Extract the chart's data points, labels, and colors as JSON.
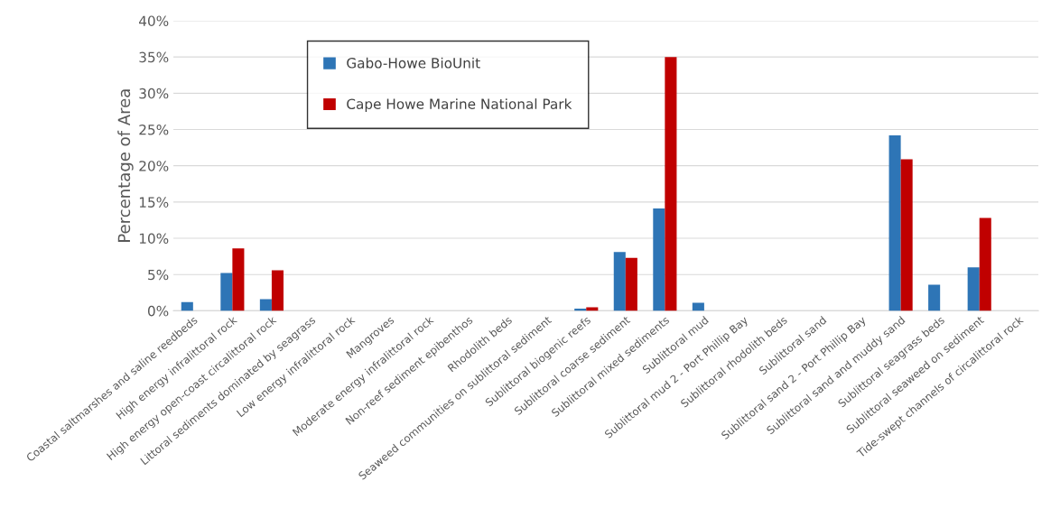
{
  "chart_data": {
    "type": "bar",
    "ylabel": "Percentage of Area",
    "categories": [
      "Coastal saltmarshes and saline reedbeds",
      "High energy infralittoral rock",
      "High energy open-coast circalittoral rock",
      "Littoral sediments dominated by seagrass",
      "Low energy infralittoral rock",
      "Mangroves",
      "Moderate energy infralittoral rock",
      "Non-reef sediment epibenthos",
      "Rhodolith beds",
      "Seaweed communities on sublittoral sediment",
      "Sublittoral biogenic reefs",
      "Sublittoral coarse sediment",
      "Sublittoral mixed sediments",
      "Sublittoral mud",
      "Sublittoral mud 2 - Port Phillip Bay",
      "Sublittoral rhodolith beds",
      "Sublittoral sand",
      "Sublittoral sand 2 - Port Phillip Bay",
      "Sublittoral sand and muddy sand",
      "Sublittoral seagrass beds",
      "Sublittoral seaweed on sediment",
      "Tide-swept channels of circalittoral rock"
    ],
    "series": [
      {
        "name": "Gabo-Howe BioUnit",
        "color": "#2e75b6",
        "values": [
          1.2,
          5.2,
          1.6,
          null,
          null,
          null,
          null,
          null,
          null,
          null,
          0.3,
          8.1,
          14.1,
          1.1,
          null,
          null,
          null,
          null,
          24.2,
          3.6,
          6.0,
          null
        ]
      },
      {
        "name": "Cape Howe Marine National Park",
        "color": "#c00000",
        "values": [
          null,
          8.6,
          5.6,
          null,
          null,
          null,
          null,
          null,
          null,
          null,
          0.5,
          7.3,
          35.0,
          null,
          null,
          null,
          null,
          null,
          20.9,
          null,
          12.8,
          null
        ]
      }
    ],
    "ylim": [
      0,
      40
    ],
    "yticks": [
      {
        "value": 0,
        "label": "0%"
      },
      {
        "value": 5,
        "label": "5%"
      },
      {
        "value": 10,
        "label": "10%"
      },
      {
        "value": 15,
        "label": "15%"
      },
      {
        "value": 20,
        "label": "20%"
      },
      {
        "value": 25,
        "label": "25%"
      },
      {
        "value": 30,
        "label": "30%"
      },
      {
        "value": 35,
        "label": "35%"
      },
      {
        "value": 40,
        "label": "40%"
      }
    ],
    "grid": "y",
    "legend": "top left"
  }
}
